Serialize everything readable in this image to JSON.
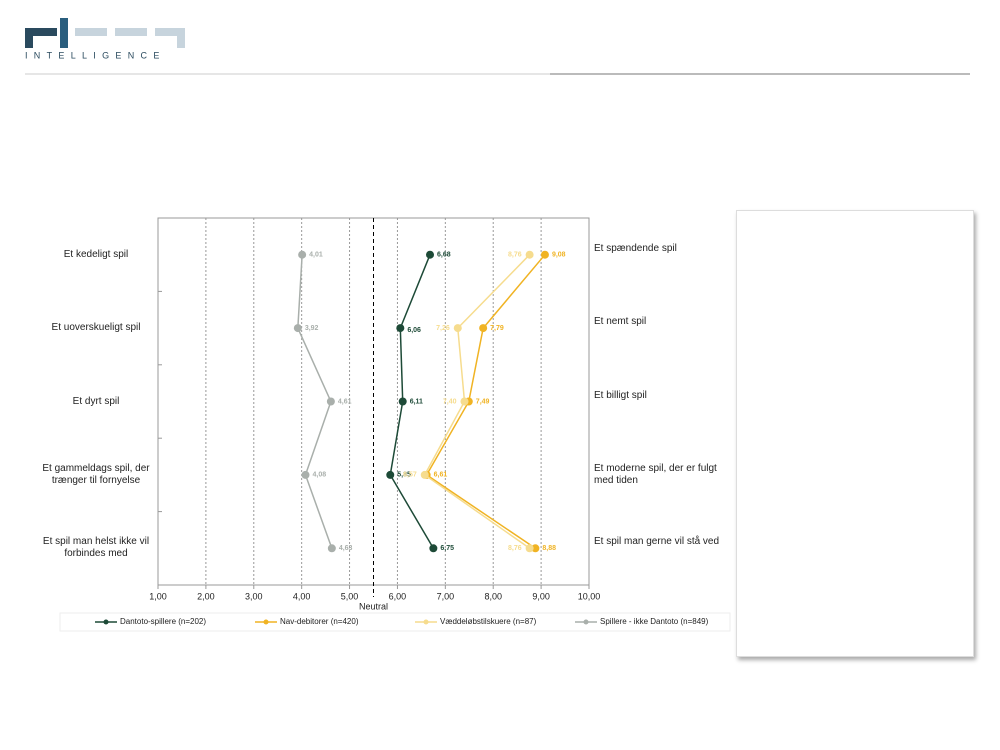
{
  "logo": {
    "subtitle": "INTELLIGENCE"
  },
  "chart_data": {
    "type": "line",
    "categories": [
      "Et kedeligt spil",
      "Et uoverskueligt spil",
      "Et dyrt spil",
      "Et gammeldags spil, der trænger til fornyelse",
      "Et spil man helst ikke vil forbindes med"
    ],
    "right_labels": [
      "Et spændende spil",
      "Et nemt spil",
      "Et billigt  spil",
      "Et moderne spil, der er fulgt med tiden",
      "Et spil man gerne vil stå ved"
    ],
    "xlim": [
      1,
      10
    ],
    "xticks": [
      {
        "value": 1,
        "label": "1,00"
      },
      {
        "value": 2,
        "label": "2,00"
      },
      {
        "value": 3,
        "label": "3,00"
      },
      {
        "value": 4,
        "label": "4,00"
      },
      {
        "value": 5,
        "label": "5,00"
      },
      {
        "value": 6,
        "label": "6,00"
      },
      {
        "value": 7,
        "label": "7,00"
      },
      {
        "value": 8,
        "label": "8,00"
      },
      {
        "value": 9,
        "label": "9,00"
      },
      {
        "value": 10,
        "label": "10,00"
      }
    ],
    "grid": true,
    "neutral": {
      "value": 5.5,
      "label": "Neutral"
    },
    "series": [
      {
        "name": "Dantoto-spillere (n=202)",
        "color": "#1d4a37",
        "label_side": "right",
        "values": [
          6.68,
          6.06,
          6.11,
          5.85,
          6.75
        ],
        "value_labels": [
          "6,68",
          "6,06",
          "6,11",
          "5,85",
          "6,75"
        ]
      },
      {
        "name": "Nav-debitorer (n=420)",
        "color": "#f0b323",
        "label_side": "right",
        "values": [
          9.08,
          7.79,
          7.49,
          6.61,
          8.88
        ],
        "value_labels": [
          "9,08",
          "7,79",
          "7,49",
          "6,61",
          "8,88"
        ]
      },
      {
        "name": "Væddeløbstilskuere (n=87)",
        "color": "#f6dc8e",
        "label_side": "left",
        "values": [
          8.76,
          7.26,
          7.4,
          6.57,
          8.76
        ],
        "value_labels": [
          "8,76",
          "7,26",
          "7,40",
          "6,57",
          "8,76"
        ]
      },
      {
        "name": "Spillere - ikke Dantoto (n=849)",
        "color": "#a9afab",
        "label_side": "right",
        "values": [
          4.01,
          3.92,
          4.61,
          4.08,
          4.63
        ],
        "value_labels": [
          "4,01",
          "3,92",
          "4,61",
          "4,08",
          "4,63"
        ]
      }
    ]
  }
}
